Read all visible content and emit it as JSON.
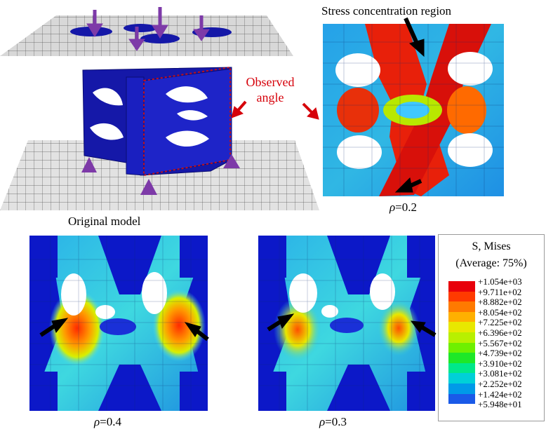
{
  "labels": {
    "stress_region": "Stress concentration region",
    "observed_angle": "Observed\nangle",
    "original_model": "Original model"
  },
  "captions": {
    "rho_top": "=0.2",
    "rho_left": "=0.4",
    "rho_mid": "=0.3",
    "rho_symbol": "ρ"
  },
  "legend": {
    "title1": "S, Mises",
    "title2": "(Average: 75%)",
    "values": [
      "+1.054e+03",
      "+9.711e+02",
      "+8.882e+02",
      "+8.054e+02",
      "+7.225e+02",
      "+6.396e+02",
      "+5.567e+02",
      "+4.739e+02",
      "+3.910e+02",
      "+3.081e+02",
      "+2.252e+02",
      "+1.424e+02",
      "+5.948e+01"
    ],
    "colors": [
      "#e8000b",
      "#ff3a00",
      "#ff7a00",
      "#ffb000",
      "#e8e800",
      "#b8f000",
      "#6ef000",
      "#1ee828",
      "#00e88a",
      "#00d0d8",
      "#009ae8",
      "#1a5ae8",
      "#0a12d8"
    ]
  },
  "colors": {
    "mesh_blue": "#1518a8",
    "arrow_purple": "#7d3aa8",
    "annotation_red": "#d6000a"
  }
}
